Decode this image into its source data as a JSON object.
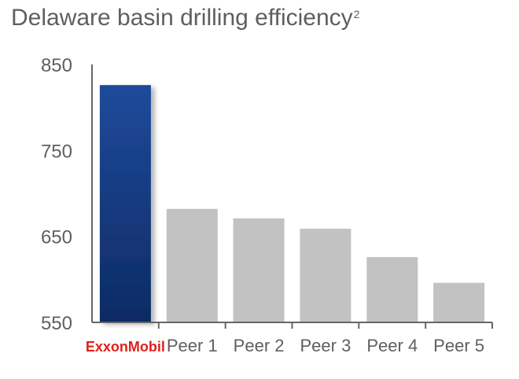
{
  "chart_data": {
    "type": "bar",
    "title": "Delaware basin drilling efficiency",
    "title_footnote": "2",
    "categories": [
      "ExxonMobil",
      "Peer 1",
      "Peer 2",
      "Peer 3",
      "Peer 4",
      "Peer 5"
    ],
    "values": [
      826,
      682,
      671,
      659,
      626,
      596
    ],
    "ylim": [
      550,
      850
    ],
    "yticks": [
      550,
      650,
      750,
      850
    ],
    "xlabel": "",
    "ylabel": "",
    "grid": false,
    "legend": "none",
    "colors": {
      "highlight_top": "#1e4a9b",
      "highlight_bottom": "#0d2b63",
      "peer": "#c2c2c2",
      "axis": "#666666",
      "text": "#5f5f5f",
      "brand": "#e0201b"
    },
    "highlight_category": "ExxonMobil",
    "brand_category_style": "logo"
  }
}
